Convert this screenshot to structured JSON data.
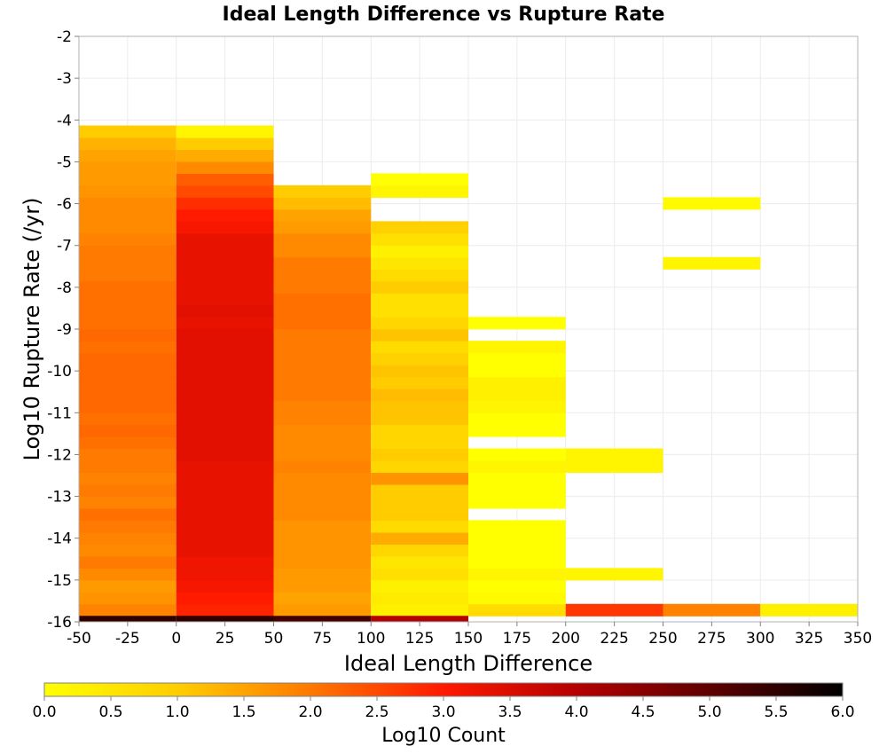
{
  "chart_data": {
    "type": "heatmap",
    "title": "Ideal Length Difference vs Rupture Rate",
    "xlabel": "Ideal Length Difference",
    "ylabel": "Log10 Rupture Rate (/yr)",
    "xlim": [
      -50,
      350
    ],
    "ylim": [
      -16,
      -2
    ],
    "x_ticks": [
      "-50",
      "-25",
      "0",
      "25",
      "50",
      "75",
      "100",
      "125",
      "150",
      "175",
      "200",
      "225",
      "250",
      "275",
      "300",
      "325",
      "350"
    ],
    "y_ticks": [
      "-2",
      "-3",
      "-4",
      "-5",
      "-6",
      "-7",
      "-8",
      "-9",
      "-10",
      "-11",
      "-12",
      "-13",
      "-14",
      "-15",
      "-16"
    ],
    "x_bin_width": 50,
    "y_bin_width": 0.286,
    "colorbar": {
      "label": "Log10 Count",
      "range": [
        0,
        6
      ],
      "ticks": [
        "0.0",
        "0.5",
        "1.0",
        "1.5",
        "2.0",
        "2.5",
        "3.0",
        "3.5",
        "4.0",
        "4.5",
        "5.0",
        "5.5",
        "6.0"
      ],
      "colors": [
        "#ffff00",
        "#ff9900",
        "#ff1a00",
        "#b30000",
        "#000000"
      ]
    },
    "columns": [
      {
        "x0": -50,
        "y0": -15.857,
        "values": [
          1.9,
          1.7,
          1.6,
          1.8,
          2.0,
          1.8,
          1.9,
          2.0,
          2.1,
          1.9,
          2.0,
          1.9,
          2.0,
          2.0,
          2.1,
          2.2,
          2.1,
          2.2,
          2.2,
          2.2,
          2.2,
          2.2,
          2.1,
          2.2,
          2.1,
          2.1,
          2.1,
          2.1,
          2.0,
          2.0,
          2.0,
          1.9,
          1.8,
          1.8,
          1.8,
          1.7,
          1.6,
          1.6,
          1.5,
          1.3,
          1.0
        ]
      },
      {
        "x0": 0,
        "y0": -15.857,
        "values": [
          2.9,
          3.0,
          3.1,
          3.2,
          3.2,
          3.3,
          3.3,
          3.3,
          3.3,
          3.3,
          3.3,
          3.3,
          3.3,
          3.4,
          3.4,
          3.4,
          3.4,
          3.4,
          3.4,
          3.4,
          3.4,
          3.4,
          3.4,
          3.4,
          3.3,
          3.4,
          3.3,
          3.3,
          3.3,
          3.3,
          3.3,
          3.3,
          3.1,
          3.0,
          2.8,
          2.5,
          2.3,
          1.8,
          1.4,
          1.0,
          0.2
        ]
      },
      {
        "x0": 50,
        "y0": -15.857,
        "values": [
          1.6,
          1.5,
          1.6,
          1.6,
          1.7,
          1.7,
          1.7,
          1.7,
          1.8,
          1.8,
          1.8,
          1.8,
          1.9,
          1.8,
          1.8,
          1.8,
          1.9,
          1.9,
          2.0,
          2.0,
          2.0,
          2.0,
          2.0,
          2.0,
          2.1,
          2.1,
          2.1,
          2.0,
          2.0,
          2.0,
          1.8,
          1.8,
          1.6,
          1.5,
          1.2,
          1.0,
          null,
          null,
          null,
          null,
          null
        ]
      },
      {
        "x0": 100,
        "y0": -15.857,
        "values": [
          0.3,
          0.4,
          0.3,
          0.6,
          0.5,
          0.8,
          1.4,
          0.7,
          1.0,
          1.0,
          1.0,
          1.7,
          0.8,
          1.0,
          0.8,
          0.8,
          1.1,
          1.1,
          1.2,
          1.0,
          1.1,
          0.9,
          0.7,
          1.1,
          0.8,
          0.6,
          0.6,
          1.0,
          0.7,
          0.5,
          0.3,
          0.6,
          0.9,
          null,
          null,
          0.2,
          0.0,
          null,
          null,
          null,
          null
        ]
      },
      {
        "x0": 150,
        "y0": -15.857,
        "values": [
          0.7,
          0.1,
          0.0,
          0.2,
          0.0,
          0.0,
          0.0,
          0.0,
          null,
          0.0,
          0.0,
          0.0,
          0.2,
          0.0,
          null,
          0.0,
          0.0,
          0.2,
          0.3,
          0.3,
          0.0,
          0.0,
          0.2,
          null,
          0.0,
          null,
          null,
          null,
          null,
          null,
          null,
          null,
          null,
          null,
          null,
          null,
          null,
          null,
          null,
          null,
          null
        ]
      },
      {
        "x0": 200,
        "y0": -15.857,
        "values": [
          2.7,
          null,
          null,
          0.2,
          null,
          null,
          null,
          null,
          null,
          null,
          null,
          null,
          0.2,
          0.2,
          null,
          null,
          null,
          null,
          null,
          null,
          null,
          null,
          null,
          null,
          null,
          null,
          null,
          null,
          null,
          null,
          null,
          null,
          null,
          null,
          null,
          null,
          null,
          null,
          null,
          null,
          null
        ]
      },
      {
        "x0": 250,
        "y0": -15.857,
        "values": [
          1.9,
          null,
          null,
          null,
          null,
          null,
          null,
          null,
          null,
          null,
          null,
          null,
          null,
          null,
          null,
          null,
          null,
          null,
          null,
          null,
          null,
          null,
          null,
          null,
          null,
          null,
          null,
          null,
          null,
          0.2,
          null,
          null,
          null,
          null,
          0.1,
          null,
          null,
          null,
          null,
          null,
          null
        ]
      },
      {
        "x0": 300,
        "y0": -15.857,
        "values": [
          0.3,
          null,
          null,
          null,
          null,
          null,
          null,
          null,
          null,
          null,
          null,
          null,
          null,
          null,
          null,
          null,
          null,
          null,
          null,
          null,
          null,
          null,
          null,
          null,
          null,
          null,
          null,
          null,
          null,
          null,
          null,
          null,
          null,
          null,
          null,
          null,
          null,
          null,
          null,
          null,
          null
        ]
      }
    ],
    "bottom_row_note_values": [
      5.5,
      5.5,
      5.3,
      4.0
    ]
  }
}
